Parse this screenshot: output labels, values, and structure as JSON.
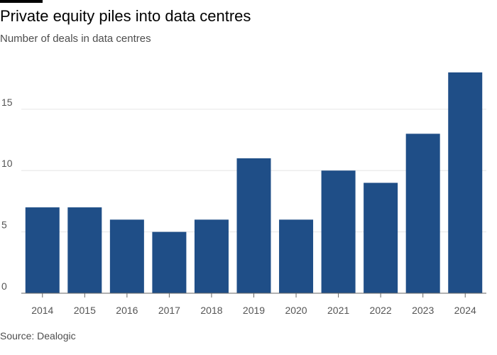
{
  "title": "Private equity piles into data centres",
  "subtitle": "Number of deals in data centres",
  "source": "Source: Dealogic",
  "colors": {
    "bar": "#1f4e87",
    "grid": "#e6e6e6",
    "axis": "#666666",
    "top_rule": "#000000"
  },
  "chart_data": {
    "type": "bar",
    "title": "Private equity piles into data centres",
    "subtitle": "Number of deals in data centres",
    "xlabel": "",
    "ylabel": "",
    "categories": [
      "2014",
      "2015",
      "2016",
      "2017",
      "2018",
      "2019",
      "2020",
      "2021",
      "2022",
      "2023",
      "2024"
    ],
    "values": [
      7,
      7,
      6,
      5,
      6,
      11,
      6,
      10,
      9,
      13,
      18
    ],
    "ylim": [
      0,
      18
    ],
    "yticks": [
      0,
      5,
      10,
      15
    ],
    "grid": true,
    "legend": "none"
  }
}
